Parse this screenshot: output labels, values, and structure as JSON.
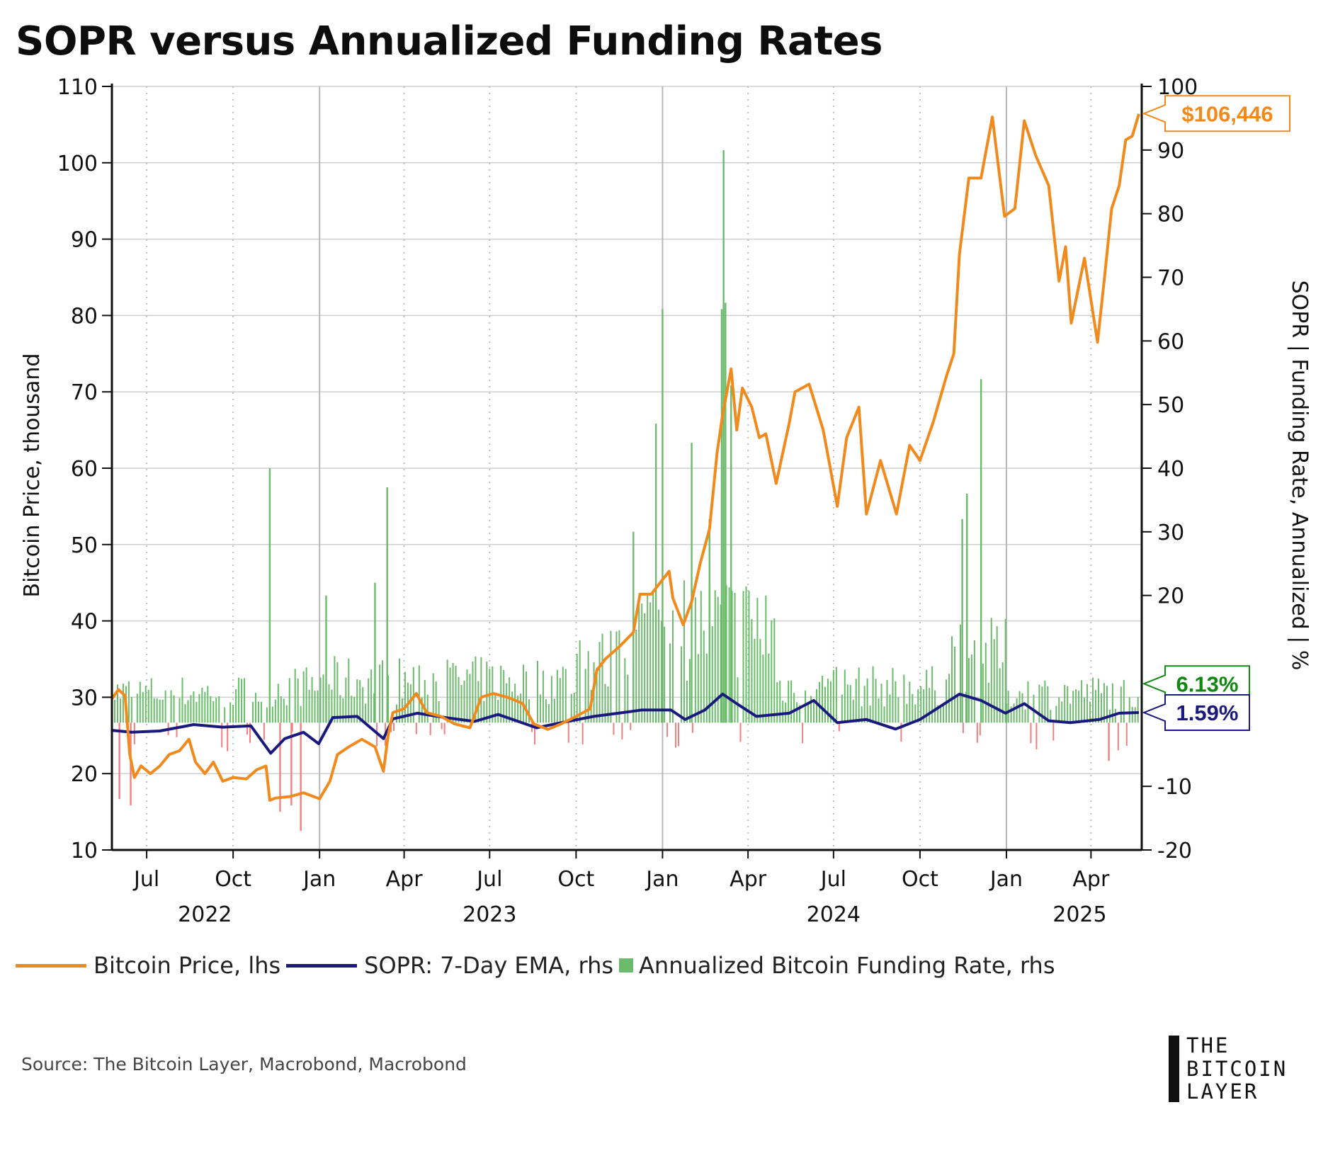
{
  "title": "SOPR versus Annualized Funding Rates",
  "legend": {
    "btc": "Bitcoin Price, lhs",
    "sopr": "SOPR: 7-Day EMA, rhs",
    "funding": "Annualized Bitcoin Funding Rate, rhs"
  },
  "source": "Source: The Bitcoin Layer, Macrobond, Macrobond",
  "logo": {
    "line1": "THE",
    "line2": "BITCOIN",
    "line3": "LAYER"
  },
  "colors": {
    "btc": "#f08a1c",
    "sopr": "#1a1a7e",
    "funding_pos": "#6cba6c",
    "funding_neg": "#f08080",
    "grid": "#cfcfcf"
  },
  "chart_data": {
    "type": "line",
    "title": "SOPR versus Annualized Funding Rates",
    "ylabel_left": "Bitcoin Price, thousand",
    "ylabel_right": "SOPR | Funding Rate, Annualized | %",
    "ylim_left": [
      10,
      110
    ],
    "ylim_right": [
      -20,
      100
    ],
    "yticks_left": [
      10,
      20,
      30,
      40,
      50,
      60,
      70,
      80,
      90,
      100,
      110
    ],
    "yticks_right": [
      -20,
      -10,
      20,
      30,
      40,
      50,
      60,
      70,
      80,
      90,
      100
    ],
    "x_start": "2022-05-25",
    "x_end": "2025-05-25",
    "month_ticks": [
      {
        "label": "Jul",
        "date": "2022-07-01"
      },
      {
        "label": "Oct",
        "date": "2022-10-01"
      },
      {
        "label": "Jan",
        "date": "2023-01-01"
      },
      {
        "label": "Apr",
        "date": "2023-04-01"
      },
      {
        "label": "Jul",
        "date": "2023-07-01"
      },
      {
        "label": "Oct",
        "date": "2023-10-01"
      },
      {
        "label": "Jan",
        "date": "2024-01-01"
      },
      {
        "label": "Apr",
        "date": "2024-04-01"
      },
      {
        "label": "Jul",
        "date": "2024-07-01"
      },
      {
        "label": "Oct",
        "date": "2024-10-01"
      },
      {
        "label": "Jan",
        "date": "2025-01-01"
      },
      {
        "label": "Apr",
        "date": "2025-04-01"
      }
    ],
    "year_labels": [
      {
        "label": "2022",
        "date": "2022-09-01"
      },
      {
        "label": "2023",
        "date": "2023-07-01"
      },
      {
        "label": "2024",
        "date": "2024-07-01"
      },
      {
        "label": "2025",
        "date": "2025-03-20"
      }
    ],
    "series": [
      {
        "name": "Bitcoin Price, lhs",
        "axis": "left",
        "kind": "line",
        "points": [
          [
            "2022-05-25",
            29.8
          ],
          [
            "2022-06-01",
            31.0
          ],
          [
            "2022-06-08",
            30.2
          ],
          [
            "2022-06-13",
            22.5
          ],
          [
            "2022-06-18",
            19.5
          ],
          [
            "2022-06-25",
            21.0
          ],
          [
            "2022-07-05",
            20.0
          ],
          [
            "2022-07-15",
            21.0
          ],
          [
            "2022-07-25",
            22.5
          ],
          [
            "2022-08-05",
            23.0
          ],
          [
            "2022-08-15",
            24.5
          ],
          [
            "2022-08-22",
            21.5
          ],
          [
            "2022-09-01",
            20.0
          ],
          [
            "2022-09-10",
            21.5
          ],
          [
            "2022-09-20",
            19.0
          ],
          [
            "2022-10-01",
            19.5
          ],
          [
            "2022-10-15",
            19.3
          ],
          [
            "2022-10-26",
            20.5
          ],
          [
            "2022-11-05",
            21.0
          ],
          [
            "2022-11-09",
            16.5
          ],
          [
            "2022-11-15",
            16.8
          ],
          [
            "2022-12-01",
            17.0
          ],
          [
            "2022-12-15",
            17.5
          ],
          [
            "2023-01-01",
            16.7
          ],
          [
            "2023-01-12",
            19.0
          ],
          [
            "2023-01-20",
            22.5
          ],
          [
            "2023-02-01",
            23.5
          ],
          [
            "2023-02-15",
            24.5
          ],
          [
            "2023-03-01",
            23.5
          ],
          [
            "2023-03-10",
            20.3
          ],
          [
            "2023-03-15",
            25.0
          ],
          [
            "2023-03-20",
            28.0
          ],
          [
            "2023-04-01",
            28.5
          ],
          [
            "2023-04-14",
            30.5
          ],
          [
            "2023-04-25",
            28.0
          ],
          [
            "2023-05-10",
            27.5
          ],
          [
            "2023-05-25",
            26.5
          ],
          [
            "2023-06-10",
            26.0
          ],
          [
            "2023-06-22",
            30.0
          ],
          [
            "2023-07-05",
            30.5
          ],
          [
            "2023-07-20",
            30.0
          ],
          [
            "2023-08-05",
            29.2
          ],
          [
            "2023-08-17",
            26.5
          ],
          [
            "2023-09-01",
            25.8
          ],
          [
            "2023-09-15",
            26.5
          ],
          [
            "2023-10-01",
            27.5
          ],
          [
            "2023-10-16",
            28.5
          ],
          [
            "2023-10-23",
            33.5
          ],
          [
            "2023-11-01",
            35.0
          ],
          [
            "2023-11-15",
            36.5
          ],
          [
            "2023-12-01",
            38.5
          ],
          [
            "2023-12-08",
            43.5
          ],
          [
            "2023-12-20",
            43.5
          ],
          [
            "2024-01-08",
            46.5
          ],
          [
            "2024-01-12",
            43.0
          ],
          [
            "2024-01-23",
            39.5
          ],
          [
            "2024-02-01",
            42.5
          ],
          [
            "2024-02-10",
            47.5
          ],
          [
            "2024-02-20",
            52.0
          ],
          [
            "2024-02-28",
            62.0
          ],
          [
            "2024-03-05",
            67.0
          ],
          [
            "2024-03-14",
            73.0
          ],
          [
            "2024-03-20",
            65.0
          ],
          [
            "2024-03-26",
            70.5
          ],
          [
            "2024-04-05",
            68.0
          ],
          [
            "2024-04-13",
            64.0
          ],
          [
            "2024-04-20",
            64.5
          ],
          [
            "2024-05-01",
            58.0
          ],
          [
            "2024-05-15",
            66.0
          ],
          [
            "2024-05-21",
            70.0
          ],
          [
            "2024-06-05",
            71.0
          ],
          [
            "2024-06-20",
            65.0
          ],
          [
            "2024-07-05",
            55.0
          ],
          [
            "2024-07-15",
            64.0
          ],
          [
            "2024-07-28",
            68.0
          ],
          [
            "2024-08-05",
            54.0
          ],
          [
            "2024-08-20",
            61.0
          ],
          [
            "2024-09-06",
            54.0
          ],
          [
            "2024-09-20",
            63.0
          ],
          [
            "2024-10-01",
            61.0
          ],
          [
            "2024-10-15",
            66.0
          ],
          [
            "2024-10-29",
            72.0
          ],
          [
            "2024-11-06",
            75.0
          ],
          [
            "2024-11-12",
            88.0
          ],
          [
            "2024-11-22",
            98.0
          ],
          [
            "2024-12-05",
            98.0
          ],
          [
            "2024-12-17",
            106.0
          ],
          [
            "2024-12-30",
            93.0
          ],
          [
            "2025-01-10",
            94.0
          ],
          [
            "2025-01-20",
            105.5
          ],
          [
            "2025-02-01",
            101.0
          ],
          [
            "2025-02-15",
            97.0
          ],
          [
            "2025-02-26",
            84.5
          ],
          [
            "2025-03-05",
            89.0
          ],
          [
            "2025-03-11",
            79.0
          ],
          [
            "2025-03-25",
            87.5
          ],
          [
            "2025-04-08",
            76.5
          ],
          [
            "2025-04-15",
            84.5
          ],
          [
            "2025-04-23",
            94.0
          ],
          [
            "2025-05-01",
            97.0
          ],
          [
            "2025-05-08",
            103.0
          ],
          [
            "2025-05-15",
            103.5
          ],
          [
            "2025-05-22",
            106.4
          ]
        ]
      },
      {
        "name": "SOPR: 7-Day EMA, rhs",
        "axis": "right",
        "kind": "line",
        "points": [
          [
            "2022-05-25",
            -1.2
          ],
          [
            "2022-06-15",
            -1.5
          ],
          [
            "2022-07-15",
            -1.3
          ],
          [
            "2022-08-20",
            -0.3
          ],
          [
            "2022-09-20",
            -0.7
          ],
          [
            "2022-10-20",
            -0.5
          ],
          [
            "2022-11-10",
            -4.8
          ],
          [
            "2022-11-25",
            -2.5
          ],
          [
            "2022-12-15",
            -1.5
          ],
          [
            "2022-12-31",
            -3.3
          ],
          [
            "2023-01-15",
            0.8
          ],
          [
            "2023-02-10",
            1.0
          ],
          [
            "2023-03-10",
            -2.5
          ],
          [
            "2023-03-20",
            0.6
          ],
          [
            "2023-04-15",
            1.5
          ],
          [
            "2023-05-15",
            0.8
          ],
          [
            "2023-06-15",
            0.2
          ],
          [
            "2023-07-10",
            1.3
          ],
          [
            "2023-08-20",
            -0.8
          ],
          [
            "2023-09-15",
            0.0
          ],
          [
            "2023-10-20",
            1.0
          ],
          [
            "2023-11-15",
            1.5
          ],
          [
            "2023-12-10",
            2.0
          ],
          [
            "2024-01-10",
            2.0
          ],
          [
            "2024-01-25",
            0.5
          ],
          [
            "2024-02-15",
            2.0
          ],
          [
            "2024-03-05",
            4.5
          ],
          [
            "2024-03-20",
            3.0
          ],
          [
            "2024-04-10",
            1.0
          ],
          [
            "2024-05-15",
            1.5
          ],
          [
            "2024-06-10",
            3.5
          ],
          [
            "2024-07-05",
            0.0
          ],
          [
            "2024-08-05",
            0.5
          ],
          [
            "2024-09-05",
            -1.0
          ],
          [
            "2024-10-01",
            0.5
          ],
          [
            "2024-11-12",
            4.5
          ],
          [
            "2024-12-05",
            3.5
          ],
          [
            "2024-12-31",
            1.5
          ],
          [
            "2025-01-20",
            3.0
          ],
          [
            "2025-02-15",
            0.3
          ],
          [
            "2025-03-10",
            0.0
          ],
          [
            "2025-04-10",
            0.5
          ],
          [
            "2025-05-01",
            1.5
          ],
          [
            "2025-05-22",
            1.59
          ]
        ]
      },
      {
        "name": "Annualized Bitcoin Funding Rate, rhs",
        "axis": "right",
        "kind": "bar",
        "spikes": [
          [
            "2022-06-02",
            -12
          ],
          [
            "2022-06-14",
            -13
          ],
          [
            "2022-11-09",
            40
          ],
          [
            "2022-11-20",
            -14
          ],
          [
            "2022-12-02",
            -13
          ],
          [
            "2022-12-12",
            -17
          ],
          [
            "2023-01-08",
            20
          ],
          [
            "2023-03-01",
            22
          ],
          [
            "2023-03-14",
            37
          ],
          [
            "2023-12-01",
            30
          ],
          [
            "2023-12-25",
            47
          ],
          [
            "2024-01-01",
            65
          ],
          [
            "2024-02-01",
            44
          ],
          [
            "2024-02-20",
            32
          ],
          [
            "2024-03-04",
            65
          ],
          [
            "2024-03-06",
            90
          ],
          [
            "2024-03-08",
            66
          ],
          [
            "2024-03-14",
            53
          ],
          [
            "2024-11-15",
            32
          ],
          [
            "2024-11-20",
            36
          ],
          [
            "2024-12-05",
            54
          ],
          [
            "2025-01-01",
            3
          ],
          [
            "2025-04-20",
            -6
          ]
        ]
      }
    ],
    "callouts": [
      {
        "label": "$106,446",
        "value": 106.446,
        "axis": "left",
        "color": "#f08a1c"
      },
      {
        "label": "6.13%",
        "value": 6.13,
        "axis": "right",
        "color": "#118811"
      },
      {
        "label": "1.59%",
        "value": 1.59,
        "axis": "right",
        "color": "#1a1a7e"
      }
    ]
  }
}
